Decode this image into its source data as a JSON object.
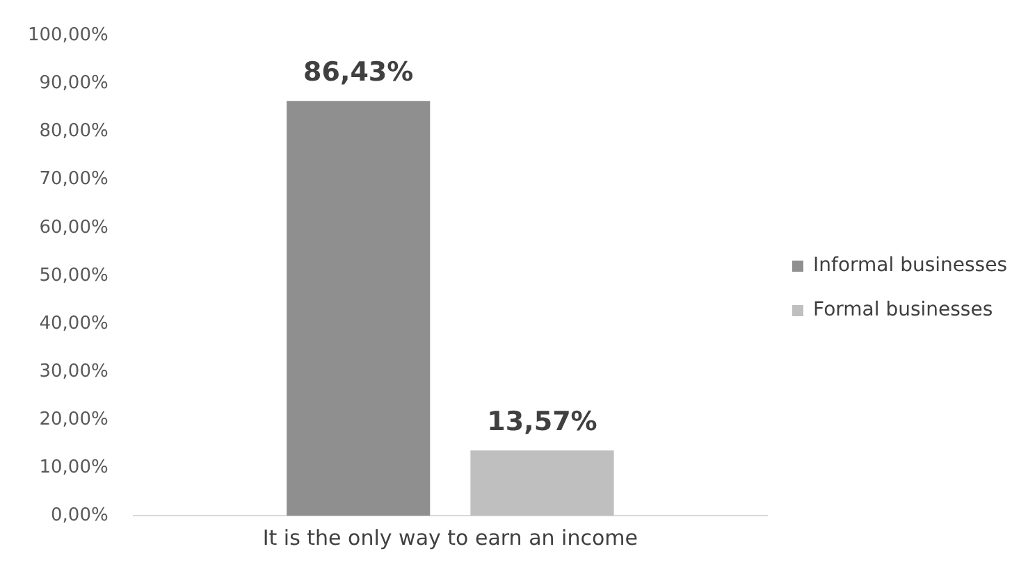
{
  "chart_data": {
    "type": "bar",
    "categories": [
      "It is the only way to earn an income"
    ],
    "series": [
      {
        "name": "Informal businesses",
        "color": "#8f8f8f",
        "values": [
          86.43
        ],
        "value_labels": [
          "86,43%"
        ]
      },
      {
        "name": "Formal businesses",
        "color": "#bfbfbf",
        "values": [
          13.57
        ],
        "value_labels": [
          "13,57%"
        ]
      }
    ],
    "ylim": [
      0,
      100
    ],
    "yticks": [
      {
        "value": 0,
        "label": "0,00%"
      },
      {
        "value": 10,
        "label": "10,00%"
      },
      {
        "value": 20,
        "label": "20,00%"
      },
      {
        "value": 30,
        "label": "30,00%"
      },
      {
        "value": 40,
        "label": "40,00%"
      },
      {
        "value": 50,
        "label": "50,00%"
      },
      {
        "value": 60,
        "label": "60,00%"
      },
      {
        "value": 70,
        "label": "70,00%"
      },
      {
        "value": 80,
        "label": "80,00%"
      },
      {
        "value": 90,
        "label": "90,00%"
      },
      {
        "value": 100,
        "label": "100,00%"
      }
    ],
    "grid": false,
    "legend": "right"
  }
}
